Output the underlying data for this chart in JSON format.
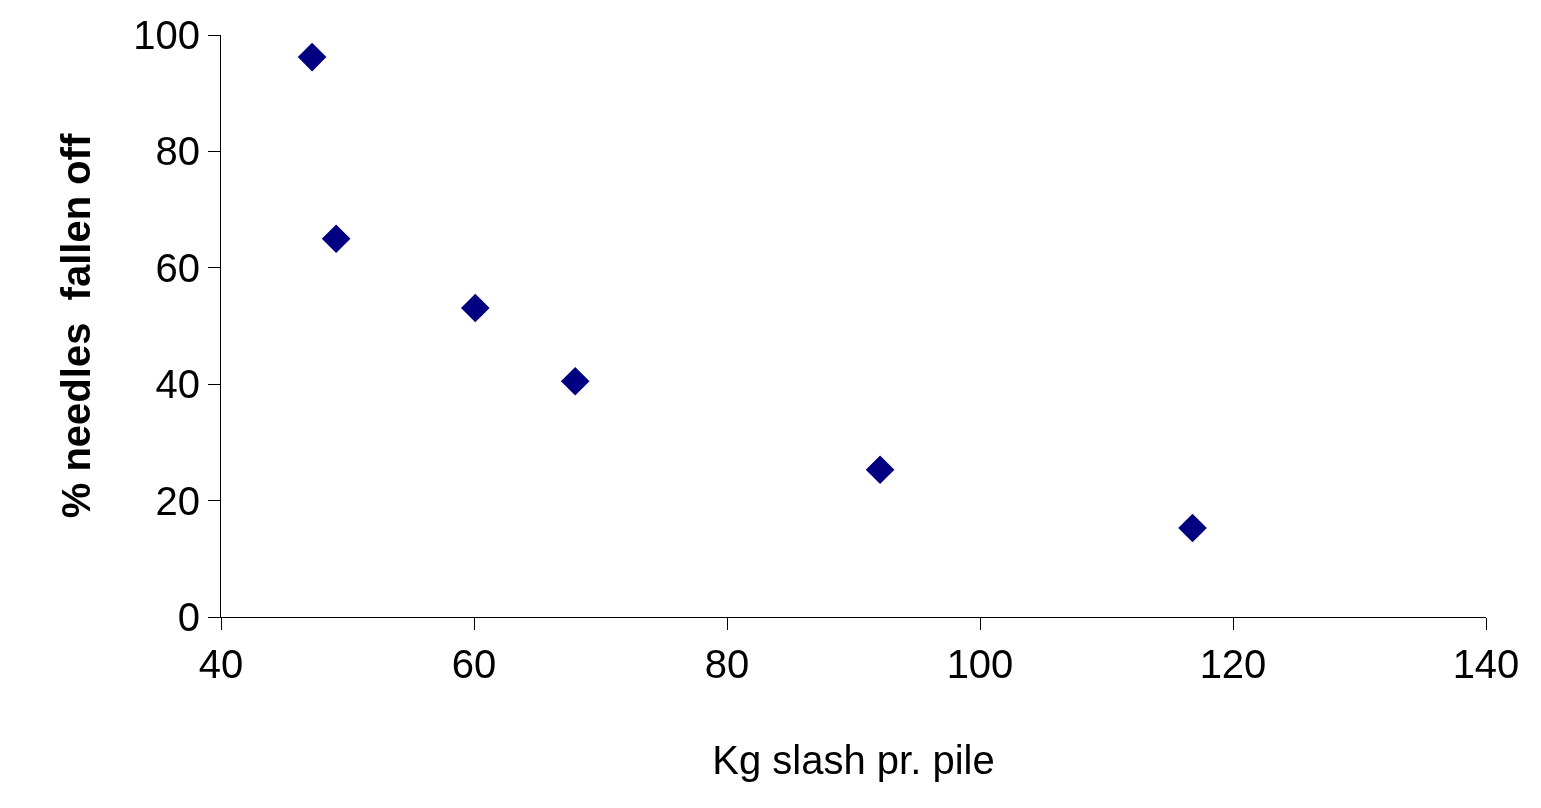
{
  "chart_data": {
    "type": "scatter",
    "xlabel": "Kg slash pr. pile",
    "ylabel": "% needles  fallen off",
    "x": [
      47.2,
      49.1,
      60.1,
      68.0,
      92.1,
      116.8
    ],
    "values": [
      96.2,
      65.0,
      53.1,
      40.5,
      25.3,
      15.3
    ],
    "color": "#000080",
    "marker": "diamond",
    "xlim": [
      40,
      140
    ],
    "xticks": [
      40,
      60,
      80,
      100,
      120,
      140
    ],
    "ylim": [
      0,
      100
    ],
    "yticks": [
      0,
      20,
      40,
      60,
      80,
      100
    ]
  }
}
